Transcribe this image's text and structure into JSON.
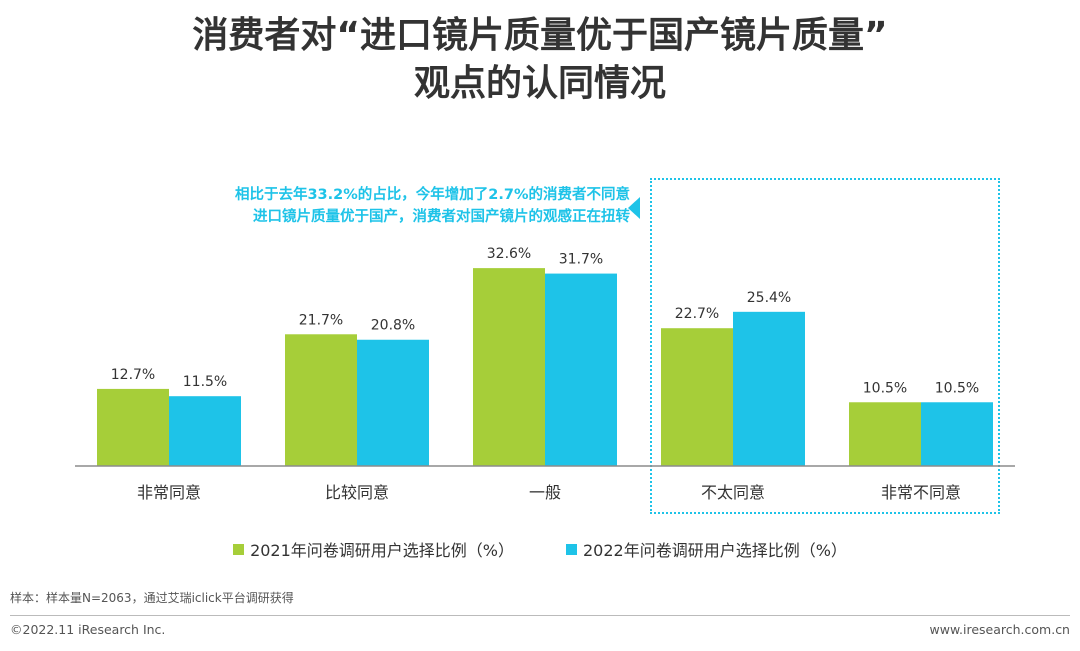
{
  "title": {
    "line1": "消费者对“进口镜片质量优于国产镜片质量”",
    "line2": "观点的认同情况"
  },
  "callout": {
    "line1": "相比于去年33.2%的占比，今年增加了2.7%的消费者不同意",
    "line2": "进口镜片质量优于国产，消费者对国产镜片的观感正在扭转"
  },
  "colors": {
    "series_2021": "#a6ce39",
    "series_2022": "#1ec3e8",
    "axis": "#8c8c8c",
    "text": "#333333"
  },
  "chart_data": {
    "type": "bar",
    "title": "消费者对“进口镜片质量优于国产镜片质量”观点的认同情况",
    "categories": [
      "非常同意",
      "比较同意",
      "一般",
      "不太同意",
      "非常不同意"
    ],
    "series": [
      {
        "name": "2021年问卷调研用户选择比例（%）",
        "values": [
          12.7,
          21.7,
          32.6,
          22.7,
          10.5
        ],
        "labels": [
          "12.7%",
          "21.7%",
          "32.6%",
          "22.7%",
          "10.5%"
        ]
      },
      {
        "name": "2022年问卷调研用户选择比例（%）",
        "values": [
          11.5,
          20.8,
          31.7,
          25.4,
          10.5
        ],
        "labels": [
          "11.5%",
          "20.8%",
          "31.7%",
          "25.4%",
          "10.5%"
        ]
      }
    ],
    "xlabel": "",
    "ylabel": "",
    "ylim": [
      0,
      36
    ],
    "grid": false,
    "legend": "bottom",
    "highlighted_categories": [
      "不太同意",
      "非常不同意"
    ]
  },
  "footer": {
    "sample_note": "样本：样本量N=2063，通过艾瑞iclick平台调研获得",
    "copyright": "©2022.11 iResearch Inc.",
    "website": "www.iresearch.com.cn"
  }
}
